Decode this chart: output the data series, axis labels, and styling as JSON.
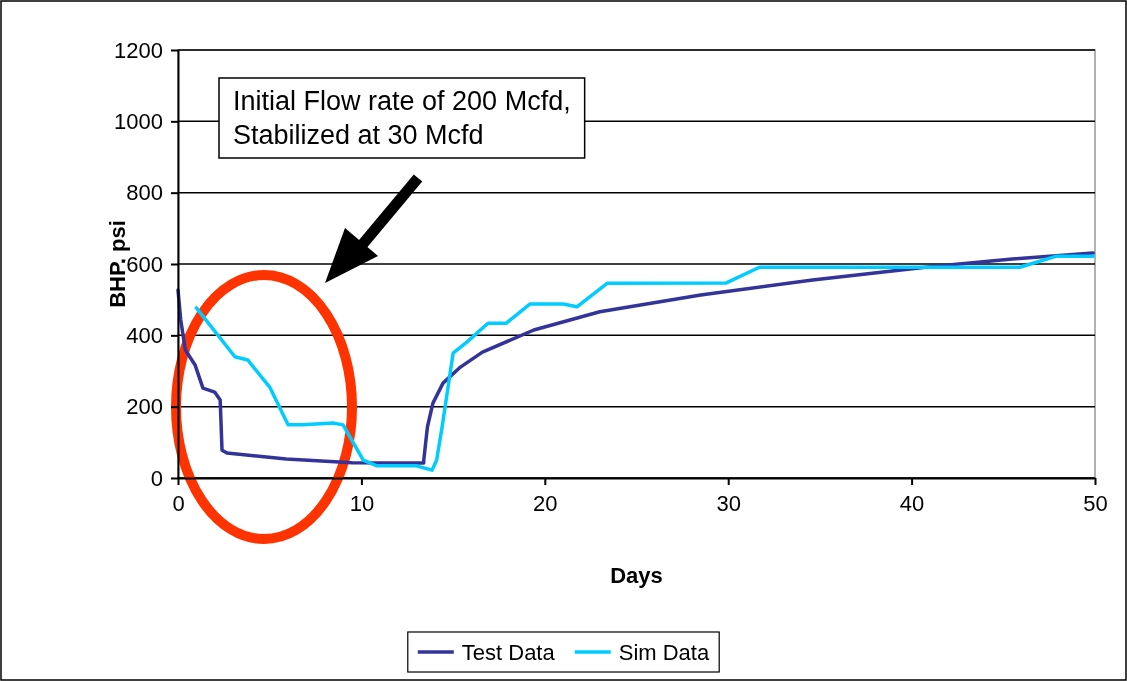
{
  "chart_data": {
    "type": "line",
    "xlabel": "Days",
    "ylabel": "BHP, psi",
    "xlim": [
      0,
      50
    ],
    "xticks": [
      0,
      10,
      20,
      30,
      40,
      50
    ],
    "ylim": [
      0,
      1200
    ],
    "yticks": [
      0,
      200,
      400,
      600,
      800,
      1000,
      1200
    ],
    "grid": "y",
    "legend": "bottom",
    "line_style": "solid",
    "marker": "none",
    "annotations": [
      "Initial Flow rate of 200 Mcfd,\nStabilized at 30 Mcfd"
    ],
    "series": [
      {
        "name": "Test Data",
        "color": "#333399",
        "x": [
          0,
          0.15,
          0.4,
          0.93,
          1.36,
          2.0,
          2.3,
          2.4,
          2.67,
          5.9,
          9.5,
          13.4,
          13.4,
          13.6,
          13.9,
          14.45,
          15.4,
          16.6,
          19.4,
          23.0,
          28.5,
          34.6,
          41.0,
          45.5,
          49.9
        ],
        "values": [
          527,
          443,
          359,
          317,
          252,
          241,
          219,
          78,
          70,
          53,
          43,
          42,
          50,
          143,
          210,
          266,
          311,
          353,
          415,
          466,
          513,
          555,
          592,
          614,
          631
        ]
      },
      {
        "name": "Sim Data",
        "color": "#00ccff",
        "x": [
          1.0,
          3.1,
          3.8,
          5.0,
          6.0,
          6.8,
          8.45,
          9.0,
          10.1,
          10.85,
          13.0,
          13.85,
          14.1,
          14.4,
          15.0,
          15.75,
          16.9,
          17.9,
          19.2,
          21.0,
          21.75,
          23.4,
          29.9,
          31.7,
          45.9,
          47.9,
          49.9
        ],
        "values": [
          477,
          340,
          331,
          255,
          149,
          149,
          154,
          149,
          50,
          34,
          34,
          22,
          50,
          143,
          350,
          381,
          434,
          434,
          488,
          488,
          480,
          546,
          547,
          591,
          591,
          622,
          622
        ]
      }
    ]
  }
}
